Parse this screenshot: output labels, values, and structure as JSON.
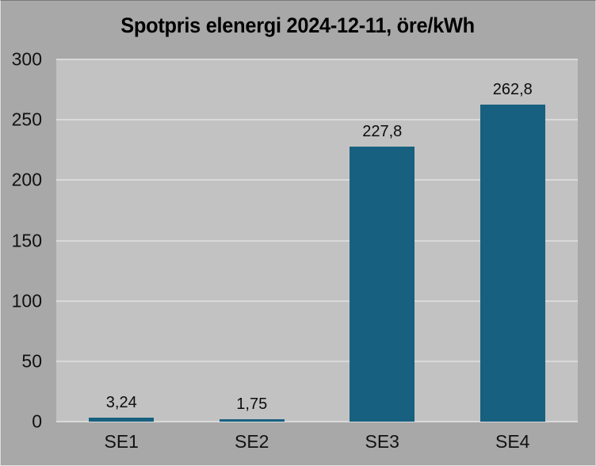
{
  "window": {
    "background": "#a8a8a8"
  },
  "chart_data": {
    "type": "bar",
    "title": "Spotpris elenergi 2024-12-11, öre/kWh",
    "categories": [
      "SE1",
      "SE2",
      "SE3",
      "SE4"
    ],
    "values": [
      3.24,
      1.75,
      227.8,
      262.8
    ],
    "value_labels": [
      "3,24",
      "1,75",
      "227,8",
      "262,8"
    ],
    "xlabel": "",
    "ylabel": "",
    "ylim": [
      0,
      300
    ],
    "yticks": [
      0,
      50,
      100,
      150,
      200,
      250,
      300
    ],
    "grid": true,
    "legend": "none",
    "colors": {
      "bar": "#17607f",
      "plot_background": "#c2c2c2",
      "chart_background": "#a8a8a8",
      "gridline": "#d9d9d9",
      "text": "#000000"
    }
  }
}
